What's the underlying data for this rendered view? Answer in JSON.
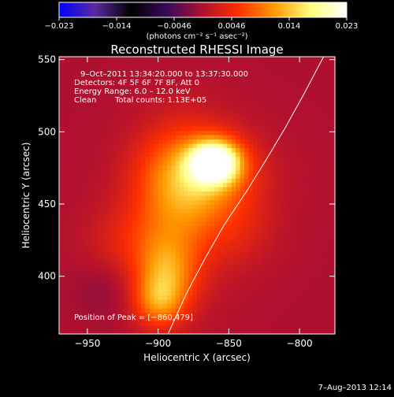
{
  "colorbar": {
    "tick_labels": [
      "−0.023",
      "−0.014",
      "−0.0046",
      "0.0046",
      "0.014",
      "0.023"
    ],
    "units_label": "(photons cm⁻² s⁻¹ asec⁻²)",
    "min": -0.023,
    "max": 0.023,
    "stops": [
      "#0000ff",
      "#5b2aa0",
      "#000000",
      "#3a0a5a",
      "#b01030",
      "#ff3000",
      "#ff9a00",
      "#ffff80",
      "#ffffff"
    ]
  },
  "image": {
    "title": "Reconstructed RHESSI Image",
    "time_range": "9–Oct–2011 13:34:20.000 to 13:37:30.000",
    "detectors": "Detectors: 4F 5F 6F 7F 8F, Att 0",
    "energy": "Energy Range: 6.0 – 12.0 keV",
    "clean_label": "Clean",
    "total_counts": "Total counts: 1.13E+05",
    "peak": "Position of Peak = [−860,479]"
  },
  "axes": {
    "xlabel": "Heliocentric X (arcsec)",
    "ylabel": "Heliocentric Y (arcsec)",
    "xlim": [
      -970,
      -775
    ],
    "ylim": [
      360,
      552
    ],
    "x_ticks": [
      -950,
      -900,
      -850,
      -800
    ],
    "y_ticks": [
      400,
      450,
      500,
      550
    ],
    "x_tick_labels": [
      "−950",
      "−900",
      "−850",
      "−800"
    ],
    "y_tick_labels": [
      "400",
      "450",
      "500",
      "550"
    ]
  },
  "limb": [
    {
      "x": -893,
      "y": 360
    },
    {
      "x": -880,
      "y": 388
    },
    {
      "x": -867,
      "y": 412
    },
    {
      "x": -853,
      "y": 436
    },
    {
      "x": -838,
      "y": 458
    },
    {
      "x": -824,
      "y": 480
    },
    {
      "x": -810,
      "y": 503
    },
    {
      "x": -797,
      "y": 526
    },
    {
      "x": -783,
      "y": 552
    }
  ],
  "sources": [
    {
      "x": -860,
      "y": 479,
      "sx": 12,
      "sy": 10,
      "amp": 1.0
    },
    {
      "x": -870,
      "y": 470,
      "sx": 28,
      "sy": 22,
      "amp": 0.42
    },
    {
      "x": -885,
      "y": 445,
      "sx": 22,
      "sy": 38,
      "amp": 0.3
    },
    {
      "x": -895,
      "y": 400,
      "sx": 14,
      "sy": 18,
      "amp": 0.38
    },
    {
      "x": -900,
      "y": 382,
      "sx": 12,
      "sy": 12,
      "amp": 0.3
    },
    {
      "x": -920,
      "y": 425,
      "sx": 22,
      "sy": 18,
      "amp": 0.14
    },
    {
      "x": -840,
      "y": 430,
      "sx": 18,
      "sy": 18,
      "amp": 0.1
    },
    {
      "x": -940,
      "y": 390,
      "sx": 14,
      "sy": 14,
      "amp": -0.07
    }
  ],
  "footer": {
    "timestamp": "7–Aug–2013 12:14"
  }
}
